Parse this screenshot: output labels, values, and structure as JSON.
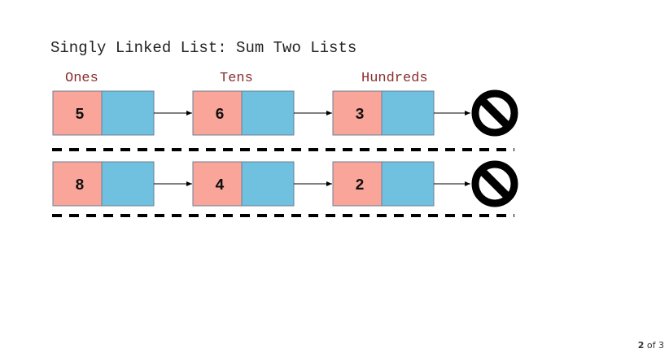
{
  "title": "Singly Linked List: Sum Two Lists",
  "place_labels": [
    "Ones",
    "Tens",
    "Hundreds"
  ],
  "lists": [
    {
      "values": [
        "5",
        "6",
        "3"
      ]
    },
    {
      "values": [
        "8",
        "4",
        "2"
      ]
    }
  ],
  "null_icon": "null-terminator-icon",
  "colors": {
    "data_cell": "#FAA59A",
    "next_cell": "#70C1E0",
    "place_label": "#8B2E2E",
    "cell_border": "#6A7F96"
  },
  "pager": {
    "current": "2",
    "separator": "of",
    "total": "3"
  }
}
